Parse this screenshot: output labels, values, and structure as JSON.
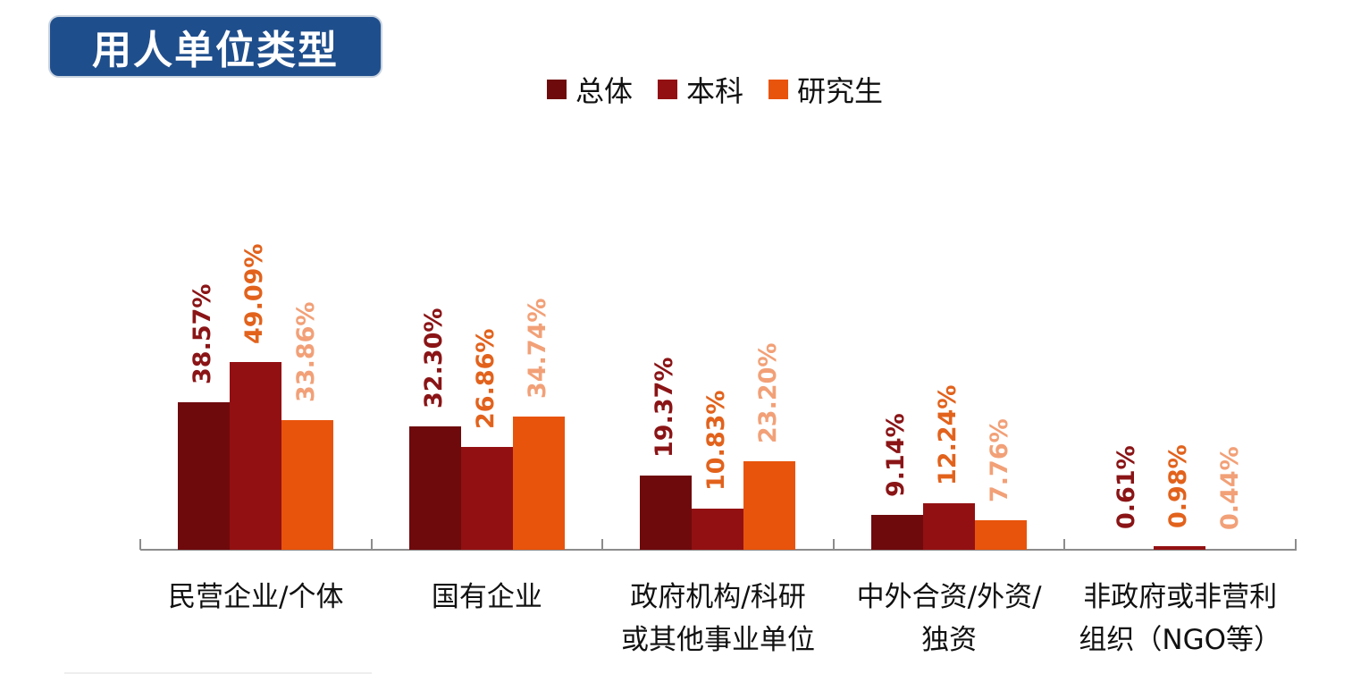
{
  "header": {
    "title": "用人单位类型"
  },
  "legend": [
    {
      "label": "总体",
      "color": "#6e0a0c"
    },
    {
      "label": "本科",
      "color": "#931012"
    },
    {
      "label": "研究生",
      "color": "#e8540c"
    }
  ],
  "label_colors": [
    "#8a1416",
    "#e2621c",
    "#f2a077"
  ],
  "chart_data": {
    "type": "bar",
    "title": "用人单位类型",
    "categories": [
      "民营企业/个体",
      "国有企业",
      "政府机构/科研或其他事业单位",
      "中外合资/外资/独资",
      "非政府或非营利组织（NGO等）"
    ],
    "category_lines": [
      [
        "民营企业/个体"
      ],
      [
        "国有企业"
      ],
      [
        "政府机构/科研",
        "或其他事业单位"
      ],
      [
        "中外合资/外资/",
        "独资"
      ],
      [
        "非政府或非营利",
        "组织（NGO等）"
      ]
    ],
    "series": [
      {
        "name": "总体",
        "values": [
          38.57,
          32.3,
          19.37,
          9.14,
          0.61
        ],
        "labels": [
          "38.57%",
          "32.30%",
          "19.37%",
          "9.14%",
          "0.61%"
        ]
      },
      {
        "name": "本科",
        "values": [
          49.09,
          26.86,
          10.83,
          12.24,
          0.98
        ],
        "labels": [
          "49.09%",
          "26.86%",
          "10.83%",
          "12.24%",
          "0.98%"
        ]
      },
      {
        "name": "研究生",
        "values": [
          33.86,
          34.74,
          23.2,
          7.76,
          0.44
        ],
        "labels": [
          "33.86%",
          "34.74%",
          "23.20%",
          "7.76%",
          "0.44%"
        ]
      }
    ],
    "xlabel": "",
    "ylabel": "",
    "y_axis_visible": false,
    "grid": false,
    "legend_position": "top",
    "data_labels": "vertical, above bars"
  }
}
